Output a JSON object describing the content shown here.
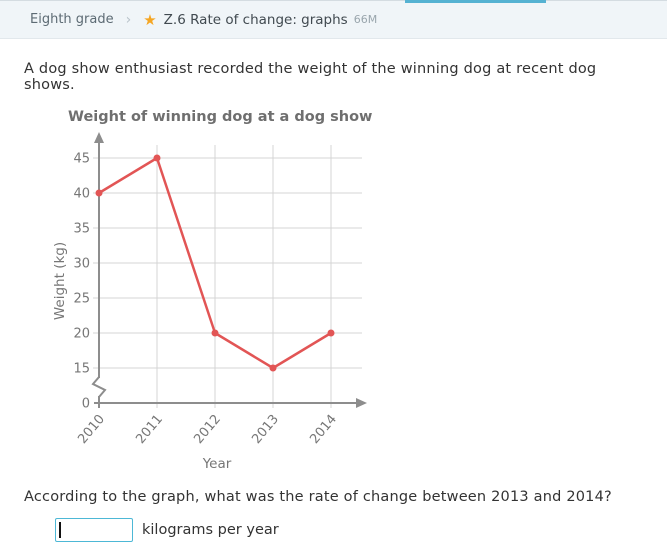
{
  "header": {
    "breadcrumb_grade": "Eighth grade",
    "skill_title": "Z.6 Rate of change: graphs",
    "medals": "66M",
    "accent_bar_color": "#55b2d2",
    "star_color": "#f5a623"
  },
  "icons": {
    "star": "★",
    "breadcrumb_chevron": "›"
  },
  "problem": {
    "prompt": "A dog show enthusiast recorded the weight of the winning dog at recent dog shows.",
    "question": "According to the graph, what was the rate of change between 2013 and 2014?",
    "answer_value": "",
    "unit_label": "kilograms per year",
    "input_border_color": "#4db8d6"
  },
  "chart_data": {
    "type": "line",
    "title": "Weight of winning dog at a dog show",
    "xlabel": "Year",
    "ylabel": "Weight (kg)",
    "categories": [
      "2010",
      "2011",
      "2012",
      "2013",
      "2014"
    ],
    "values": [
      40,
      45,
      20,
      15,
      20
    ],
    "yticks": [
      0,
      15,
      20,
      25,
      30,
      35,
      40,
      45
    ],
    "ylim": [
      0,
      47
    ],
    "axis_break_between": [
      0,
      15
    ],
    "grid": true,
    "legend": false,
    "line_color": "#e25555",
    "marker": "circle",
    "grid_color": "#d4d4d4",
    "axis_color": "#8d8d8d",
    "tick_label_color": "#767676"
  }
}
